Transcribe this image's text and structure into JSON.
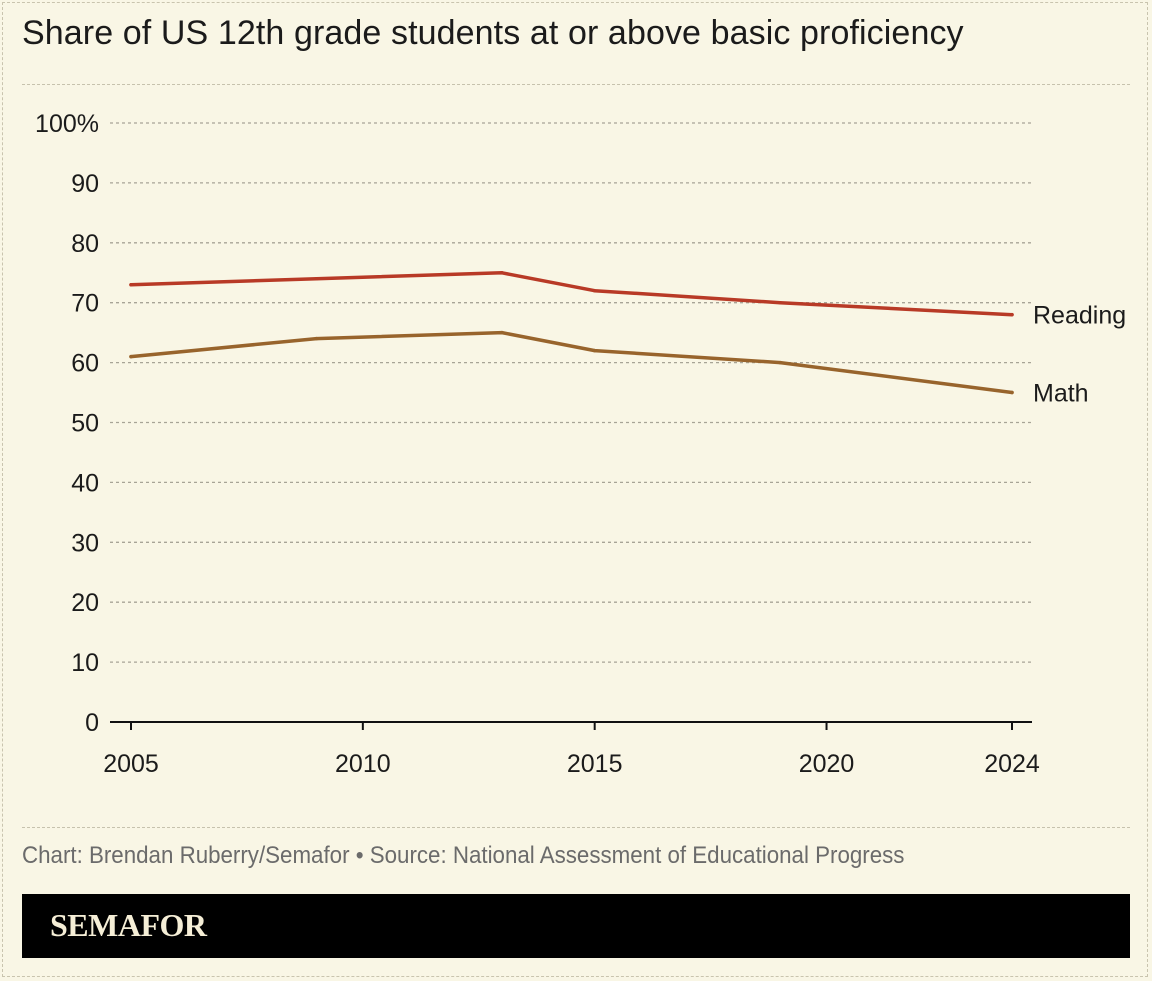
{
  "title": "Share of US 12th grade students at or above basic proficiency",
  "source": "Chart: Brendan Ruberry/Semafor • Source: National Assessment of Educational Progress",
  "brand": "SEMAFOR",
  "colors": {
    "background": "#f9f6e5",
    "reading": "#b83a26",
    "math": "#98642c",
    "grid": "#a8a496",
    "axis": "#111111",
    "text": "#1b1b1b",
    "footer_bar": "#000000"
  },
  "chart_data": {
    "type": "line",
    "title": "Share of US 12th grade students at or above basic proficiency",
    "xlabel": "",
    "ylabel": "",
    "xlim": [
      2005,
      2024
    ],
    "ylim": [
      0,
      100
    ],
    "x_ticks": [
      2005,
      2010,
      2015,
      2020,
      2024
    ],
    "y_ticks": [
      0,
      10,
      20,
      30,
      40,
      50,
      60,
      70,
      80,
      90,
      100
    ],
    "y_tick_labels": [
      "0",
      "10",
      "20",
      "30",
      "40",
      "50",
      "60",
      "70",
      "80",
      "90",
      "100%"
    ],
    "grid": true,
    "legend": "direct labels at line ends (right)",
    "series": [
      {
        "name": "Reading",
        "color": "#b83a26",
        "x": [
          2005,
          2009,
          2013,
          2015,
          2019,
          2024
        ],
        "values": [
          73,
          74,
          75,
          72,
          70,
          68
        ]
      },
      {
        "name": "Math",
        "color": "#98642c",
        "x": [
          2005,
          2009,
          2013,
          2015,
          2019,
          2024
        ],
        "values": [
          61,
          64,
          65,
          62,
          60,
          55
        ]
      }
    ]
  }
}
